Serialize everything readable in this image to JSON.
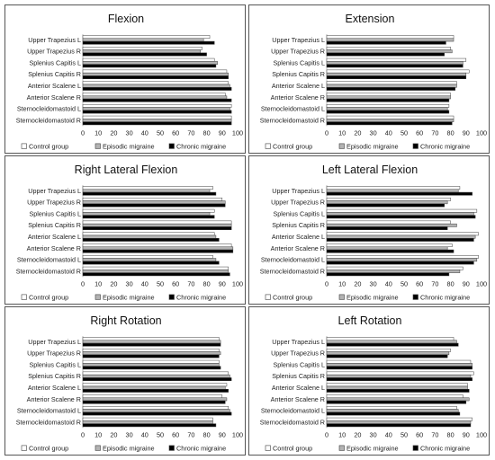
{
  "chart_data": [
    {
      "type": "bar",
      "title": "Flexion",
      "categories": [
        "Upper Trapezius L",
        "Upper Trapezius R",
        "Splenius Capitis L",
        "Splenius Capitis R",
        "Anterior Scalene L",
        "Anterior Scalene R",
        "Sternocleidomastoid L",
        "Sternocleidomastoid R"
      ],
      "series": [
        {
          "name": "Control group",
          "values": [
            82,
            77,
            85,
            93,
            94,
            92,
            96,
            96
          ]
        },
        {
          "name": "Episodic migraine",
          "values": [
            78,
            76,
            87,
            94,
            95,
            93,
            95,
            96
          ]
        },
        {
          "name": "Chronic migraine",
          "values": [
            85,
            80,
            86,
            94,
            96,
            96,
            96,
            96
          ]
        }
      ],
      "xlim": [
        0,
        100
      ],
      "xticks": [
        "0",
        "10",
        "20",
        "30",
        "40",
        "50",
        "60",
        "70",
        "80",
        "90",
        "100"
      ]
    },
    {
      "type": "bar",
      "title": "Extension",
      "categories": [
        "Upper Trapezius L",
        "Upper Trapezius R",
        "Splenius Capitis L",
        "Splenius Capitis R",
        "Anterior Scalene L",
        "Anterior Scalene R",
        "Sternocleidomastoid L",
        "Sternocleidomastoid R"
      ],
      "series": [
        {
          "name": "Control group",
          "values": [
            82,
            80,
            90,
            92,
            84,
            80,
            79,
            82
          ]
        },
        {
          "name": "Episodic migraine",
          "values": [
            82,
            81,
            88,
            90,
            84,
            80,
            78,
            82
          ]
        },
        {
          "name": "Chronic migraine",
          "values": [
            77,
            76,
            88,
            90,
            83,
            79,
            79,
            81
          ]
        }
      ],
      "xlim": [
        0,
        100
      ],
      "xticks": [
        "0",
        "10",
        "20",
        "30",
        "40",
        "50",
        "60",
        "70",
        "80",
        "90",
        "100"
      ]
    },
    {
      "type": "bar",
      "title": "Right Lateral Flexion",
      "categories": [
        "Upper Trapezius L",
        "Upper Trapezius R",
        "Splenius Capitis L",
        "Splenius Capitis R",
        "Anterior Scalene L",
        "Anterior Scalene R",
        "Sternocleidomastoid L",
        "Sternocleidomastoid R"
      ],
      "series": [
        {
          "name": "Control group",
          "values": [
            84,
            90,
            85,
            96,
            85,
            96,
            84,
            94
          ]
        },
        {
          "name": "Episodic migraine",
          "values": [
            82,
            92,
            82,
            96,
            86,
            97,
            86,
            94
          ]
        },
        {
          "name": "Chronic migraine",
          "values": [
            86,
            92,
            85,
            96,
            88,
            97,
            88,
            95
          ]
        }
      ],
      "xlim": [
        0,
        100
      ],
      "xticks": [
        "0",
        "10",
        "20",
        "30",
        "40",
        "50",
        "60",
        "70",
        "80",
        "90",
        "100"
      ]
    },
    {
      "type": "bar",
      "title": "Left Lateral Flexion",
      "categories": [
        "Upper Trapezius L",
        "Upper Trapezius R",
        "Splenius Capitis L",
        "Splenius Capitis R",
        "Anterior Scalene L",
        "Anterior Scalene R",
        "Sternocleidomastoid L",
        "Sternocleidomastoid R"
      ],
      "series": [
        {
          "name": "Control group",
          "values": [
            86,
            80,
            97,
            80,
            98,
            81,
            98,
            88
          ]
        },
        {
          "name": "Episodic migraine",
          "values": [
            85,
            78,
            95,
            84,
            96,
            78,
            97,
            86
          ]
        },
        {
          "name": "Chronic migraine",
          "values": [
            94,
            76,
            96,
            78,
            95,
            82,
            95,
            79
          ]
        }
      ],
      "xlim": [
        0,
        100
      ],
      "xticks": [
        "0",
        "10",
        "20",
        "30",
        "40",
        "50",
        "60",
        "70",
        "80",
        "90",
        "100"
      ]
    },
    {
      "type": "bar",
      "title": "Right Rotation",
      "categories": [
        "Upper Trapezius L",
        "Upper Trapezius R",
        "Splenius Capitis L",
        "Splenius Capitis R",
        "Anterior Scalene L",
        "Anterior Scalene R",
        "Sternocleidomastoid L",
        "Sternocleidomastoid R"
      ],
      "series": [
        {
          "name": "Control group",
          "values": [
            88,
            88,
            88,
            94,
            93,
            90,
            94,
            84
          ]
        },
        {
          "name": "Episodic migraine",
          "values": [
            89,
            89,
            88,
            95,
            92,
            93,
            95,
            84
          ]
        },
        {
          "name": "Chronic migraine",
          "values": [
            89,
            88,
            89,
            96,
            94,
            92,
            96,
            86
          ]
        }
      ],
      "xlim": [
        0,
        100
      ],
      "xticks": [
        "0",
        "10",
        "20",
        "30",
        "40",
        "50",
        "60",
        "70",
        "80",
        "90",
        "100"
      ]
    },
    {
      "type": "bar",
      "title": "Left Rotation",
      "categories": [
        "Upper Trapezius L",
        "Upper Trapezius R",
        "Splenius Capitis L",
        "Splenius Capitis R",
        "Anterior Scalene L",
        "Anterior Scalene R",
        "Sternocleidomastoid L",
        "Sternocleidomastoid R"
      ],
      "series": [
        {
          "name": "Control group",
          "values": [
            82,
            80,
            93,
            95,
            91,
            88,
            84,
            94
          ]
        },
        {
          "name": "Episodic migraine",
          "values": [
            84,
            79,
            94,
            93,
            91,
            92,
            85,
            93
          ]
        },
        {
          "name": "Chronic migraine",
          "values": [
            85,
            78,
            94,
            94,
            92,
            90,
            86,
            93
          ]
        }
      ],
      "xlim": [
        0,
        100
      ],
      "xticks": [
        "0",
        "10",
        "20",
        "30",
        "40",
        "50",
        "60",
        "70",
        "80",
        "90",
        "100"
      ]
    }
  ],
  "legend": [
    {
      "label": "Control group",
      "color": "#ffffff"
    },
    {
      "label": "Episodic migraine",
      "color": "#b3b3b3"
    },
    {
      "label": "Chronic migraine",
      "color": "#000000"
    }
  ],
  "colors": {
    "bar_outline": "#404040",
    "axis": "#bfbfbf",
    "text": "#222222",
    "panel_border": "#555555"
  }
}
